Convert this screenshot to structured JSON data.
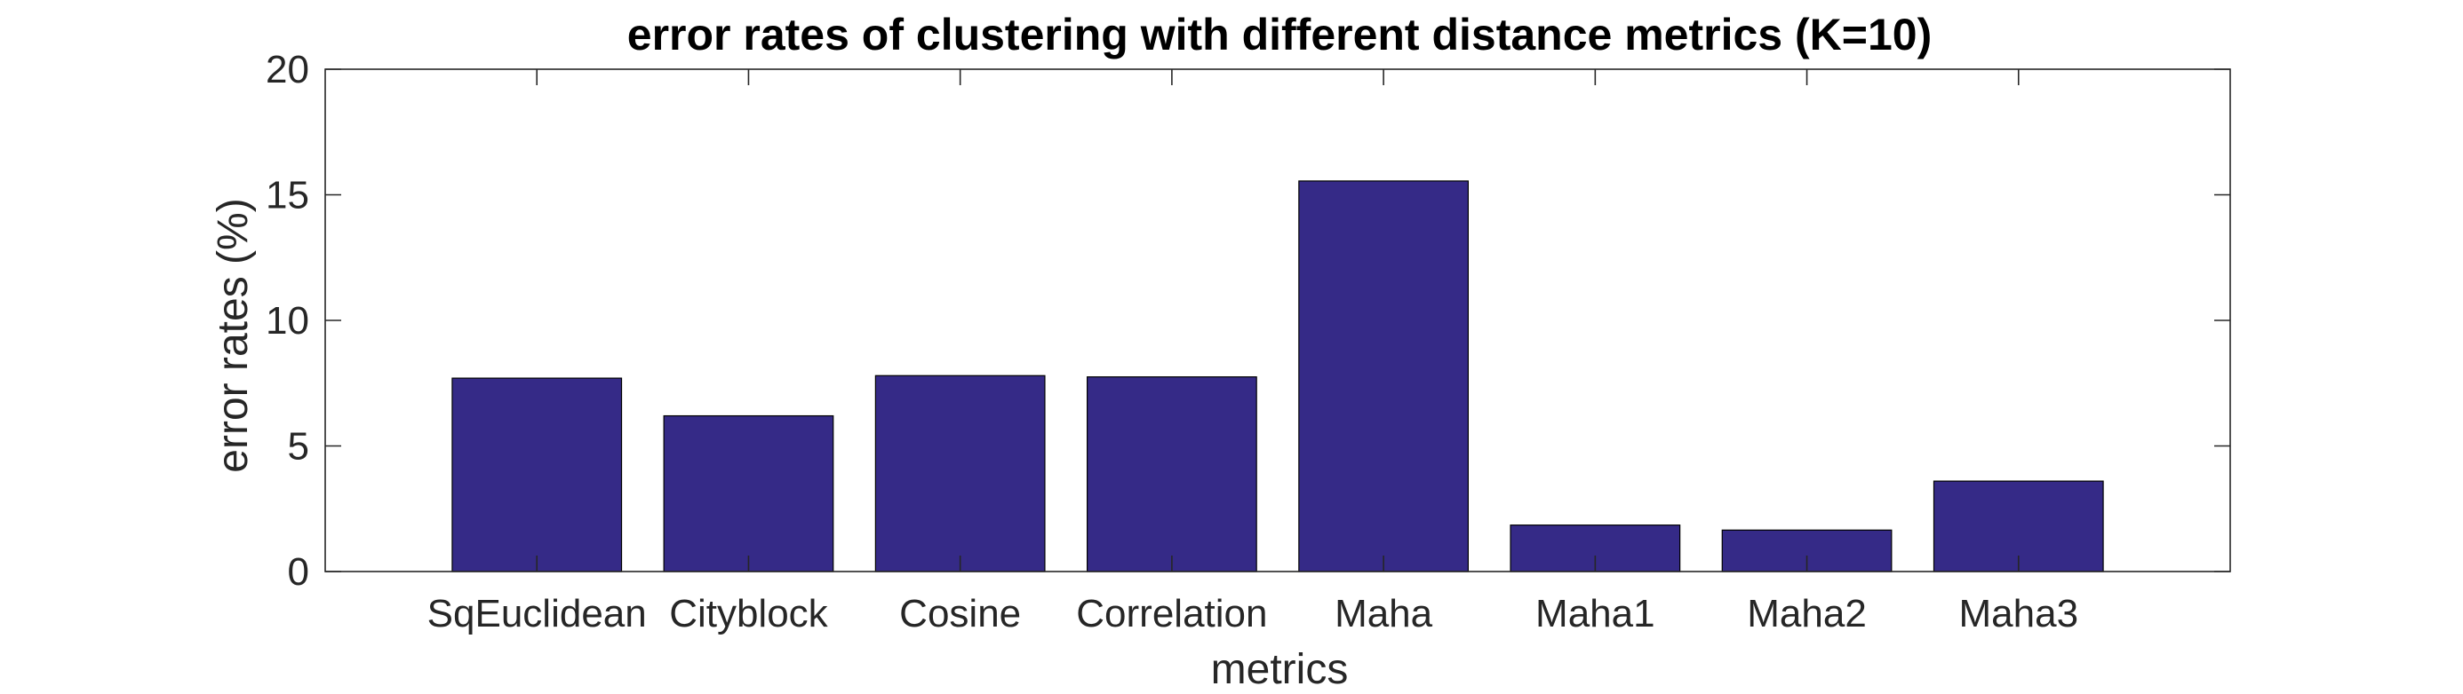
{
  "chart_data": {
    "type": "bar",
    "title": "error rates of clustering with different distance metrics (K=10)",
    "xlabel": "metrics",
    "ylabel": "error rates (%)",
    "categories": [
      "SqEuclidean",
      "Cityblock",
      "Cosine",
      "Correlation",
      "Maha",
      "Maha1",
      "Maha2",
      "Maha3"
    ],
    "values": [
      7.7,
      6.2,
      7.8,
      7.75,
      15.55,
      1.85,
      1.65,
      3.6
    ],
    "ylim": [
      0,
      20
    ],
    "yticks": [
      "0",
      "5",
      "10",
      "15",
      "20"
    ],
    "bar_color": "#352A87",
    "grid": false,
    "legend": "none"
  }
}
